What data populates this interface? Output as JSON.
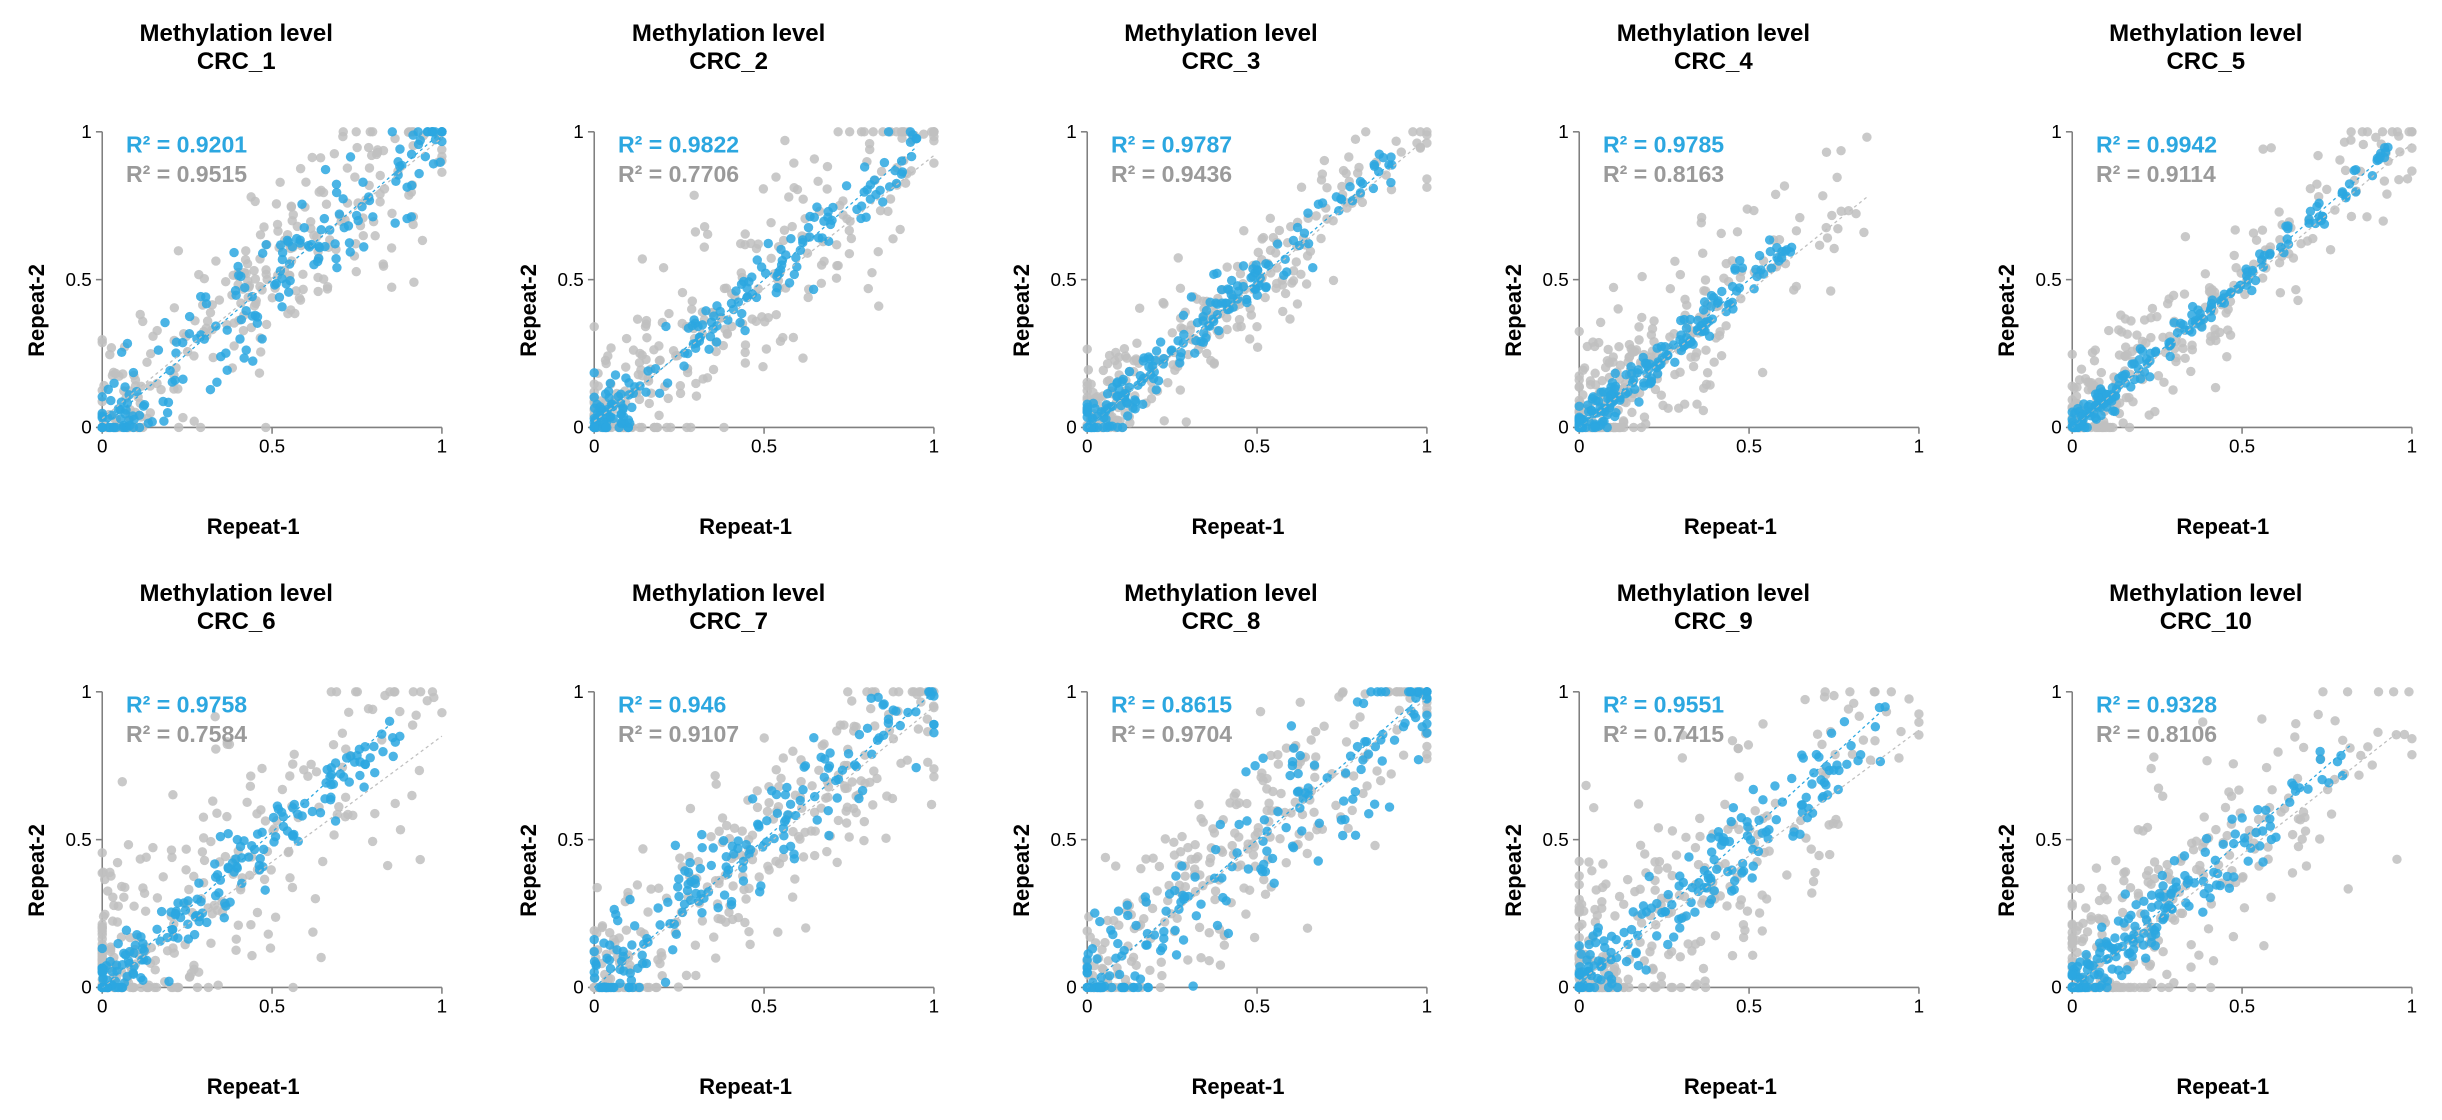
{
  "global": {
    "background_color": "#ffffff",
    "font_family": "Arial, Helvetica, sans-serif",
    "title_prefix": "Methylation level",
    "xlabel": "Repeat-1",
    "ylabel": "Repeat-2",
    "xlim": [
      0,
      1
    ],
    "ylim": [
      0,
      1
    ],
    "ticks": [
      0,
      0.5,
      1
    ],
    "axis_color": "#808080",
    "tick_fontsize": 18,
    "title_fontsize": 24,
    "label_fontsize": 22,
    "r2_fontsize": 22,
    "marker_size": 4.5,
    "marker_opacity": 0.85,
    "series_colors": {
      "blue": "#2ca7e0",
      "gray": "#bfbfbf"
    },
    "trend_dash": "3,3",
    "trend_width": 1.2,
    "n_points_gray": 260,
    "n_points_blue": 180
  },
  "panels": [
    {
      "id": "CRC_1",
      "title_line2": "CRC_1",
      "r2_blue": "R² = 0.9201",
      "r2_gray": "R² = 0.9515",
      "blue_trend": {
        "slope": 1.0,
        "intercept": 0.0
      },
      "gray_trend": {
        "slope": 0.95,
        "intercept": 0.03
      },
      "cloud": {
        "centroid": [
          0.55,
          0.55
        ],
        "spread_along": 0.28,
        "spread_perp": 0.09,
        "gray_extra_spread": 0.04,
        "xmax_blue": 1.0,
        "xmax_gray": 1.0
      }
    },
    {
      "id": "CRC_2",
      "title_line2": "CRC_2",
      "r2_blue": "R² = 0.9822",
      "r2_gray": "R² = 0.7706",
      "blue_trend": {
        "slope": 1.0,
        "intercept": 0.0
      },
      "gray_trend": {
        "slope": 0.9,
        "intercept": 0.02
      },
      "cloud": {
        "centroid": [
          0.4,
          0.4
        ],
        "spread_along": 0.32,
        "spread_perp": 0.05,
        "gray_extra_spread": 0.11,
        "xmax_blue": 0.95,
        "xmax_gray": 1.0
      }
    },
    {
      "id": "CRC_3",
      "title_line2": "CRC_3",
      "r2_blue": "R² = 0.9787",
      "r2_gray": "R² = 0.9436",
      "blue_trend": {
        "slope": 1.0,
        "intercept": 0.0
      },
      "gray_trend": {
        "slope": 0.98,
        "intercept": 0.0
      },
      "cloud": {
        "centroid": [
          0.35,
          0.35
        ],
        "spread_along": 0.3,
        "spread_perp": 0.045,
        "gray_extra_spread": 0.05,
        "xmax_blue": 0.9,
        "xmax_gray": 1.0
      }
    },
    {
      "id": "CRC_4",
      "title_line2": "CRC_4",
      "r2_blue": "R² = 0.9785",
      "r2_gray": "R² = 0.8163",
      "blue_trend": {
        "slope": 1.0,
        "intercept": 0.0
      },
      "gray_trend": {
        "slope": 0.92,
        "intercept": 0.0
      },
      "cloud": {
        "centroid": [
          0.18,
          0.18
        ],
        "spread_along": 0.18,
        "spread_perp": 0.035,
        "gray_extra_spread": 0.09,
        "xmax_blue": 0.62,
        "xmax_gray": 0.85
      }
    },
    {
      "id": "CRC_5",
      "title_line2": "CRC_5",
      "r2_blue": "R² = 0.9942",
      "r2_gray": "R² = 0.9114",
      "blue_trend": {
        "slope": 1.0,
        "intercept": 0.0
      },
      "gray_trend": {
        "slope": 0.96,
        "intercept": 0.0
      },
      "cloud": {
        "centroid": [
          0.3,
          0.3
        ],
        "spread_along": 0.3,
        "spread_perp": 0.025,
        "gray_extra_spread": 0.07,
        "xmax_blue": 0.92,
        "xmax_gray": 1.0
      }
    },
    {
      "id": "CRC_6",
      "title_line2": "CRC_6",
      "r2_blue": "R² = 0.9758",
      "r2_gray": "R² = 0.7584",
      "blue_trend": {
        "slope": 1.05,
        "intercept": 0.0
      },
      "gray_trend": {
        "slope": 0.85,
        "intercept": 0.0
      },
      "cloud": {
        "centroid": [
          0.28,
          0.28
        ],
        "spread_along": 0.28,
        "spread_perp": 0.05,
        "gray_extra_spread": 0.13,
        "xmax_blue": 0.85,
        "xmax_gray": 1.0
      }
    },
    {
      "id": "CRC_7",
      "title_line2": "CRC_7",
      "r2_blue": "R² = 0.946",
      "r2_gray": "R² = 0.9107",
      "blue_trend": {
        "slope": 1.0,
        "intercept": 0.0
      },
      "gray_trend": {
        "slope": 0.95,
        "intercept": 0.0
      },
      "cloud": {
        "centroid": [
          0.45,
          0.45
        ],
        "spread_along": 0.3,
        "spread_perp": 0.08,
        "gray_extra_spread": 0.06,
        "xmax_blue": 1.0,
        "xmax_gray": 1.0
      }
    },
    {
      "id": "CRC_8",
      "title_line2": "CRC_8",
      "r2_blue": "R² = 0.8615",
      "r2_gray": "R² = 0.9704",
      "blue_trend": {
        "slope": 1.0,
        "intercept": 0.0
      },
      "gray_trend": {
        "slope": 0.98,
        "intercept": 0.0
      },
      "cloud": {
        "centroid": [
          0.55,
          0.55
        ],
        "spread_along": 0.32,
        "spread_perp": 0.11,
        "gray_extra_spread": 0.03,
        "xmax_blue": 1.0,
        "xmax_gray": 1.0
      }
    },
    {
      "id": "CRC_9",
      "title_line2": "CRC_9",
      "r2_blue": "R² = 0.9551",
      "r2_gray": "R² = 0.7415",
      "blue_trend": {
        "slope": 1.05,
        "intercept": 0.0
      },
      "gray_trend": {
        "slope": 0.85,
        "intercept": 0.02
      },
      "cloud": {
        "centroid": [
          0.3,
          0.3
        ],
        "spread_along": 0.3,
        "spread_perp": 0.06,
        "gray_extra_spread": 0.14,
        "xmax_blue": 0.9,
        "xmax_gray": 1.0
      }
    },
    {
      "id": "CRC_10",
      "title_line2": "CRC_10",
      "r2_blue": "R² = 0.9328",
      "r2_gray": "R² = 0.8106",
      "blue_trend": {
        "slope": 1.0,
        "intercept": 0.0
      },
      "gray_trend": {
        "slope": 0.9,
        "intercept": 0.0
      },
      "cloud": {
        "centroid": [
          0.22,
          0.22
        ],
        "spread_along": 0.22,
        "spread_perp": 0.055,
        "gray_extra_spread": 0.1,
        "xmax_blue": 0.82,
        "xmax_gray": 0.95
      }
    }
  ]
}
